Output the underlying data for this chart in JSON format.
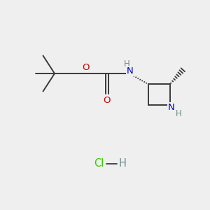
{
  "bg_color": "#efefef",
  "figsize": [
    3.0,
    3.0
  ],
  "dpi": 100,
  "bond_color": "#3a3a3a",
  "bond_lw": 1.4,
  "atom_colors": {
    "H": "#6a8a8a",
    "N": "#0000cc",
    "O": "#cc0000",
    "Cl": "#33cc00"
  },
  "font_size": 9.5,
  "small_font": 8.5,
  "hcl_font_size": 10.5,
  "layout": {
    "xlim": [
      0,
      10
    ],
    "ylim": [
      0,
      10
    ],
    "tbu_x": 2.6,
    "tbu_y": 6.5,
    "o_ester_x": 4.1,
    "o_ester_y": 6.5,
    "carb_x": 5.1,
    "carb_y": 6.5,
    "co_y": 5.55,
    "nh_x": 6.15,
    "nh_y": 6.5,
    "c3_x": 7.05,
    "c3_y": 6.0,
    "c2_x": 8.1,
    "c2_y": 6.0,
    "naz_x": 8.1,
    "naz_y": 5.0,
    "caz_x": 7.05,
    "caz_y": 5.0,
    "hcl_x": 4.7,
    "hcl_y": 2.2
  }
}
